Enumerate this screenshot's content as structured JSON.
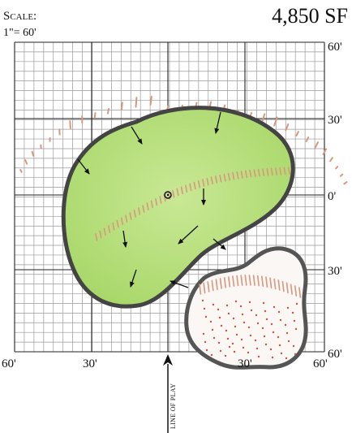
{
  "scale": {
    "heading": "Scale:",
    "value": "1\"= 60'"
  },
  "area": "4,850 SF",
  "axis_labels": {
    "right": [
      "60'",
      "30'",
      "0'",
      "30'",
      "60'"
    ],
    "bottom": [
      "60'",
      "30'",
      "30'",
      "60'"
    ]
  },
  "line_of_play": "LINE OF PLAY",
  "colors": {
    "green_fill": "#b9e07c",
    "green_light": "#c9e895",
    "outline": "#444444",
    "grid": "#9a9a9a",
    "grid_major": "#222222",
    "hatch": "#d9977d",
    "sand_dot": "#c0584a"
  }
}
